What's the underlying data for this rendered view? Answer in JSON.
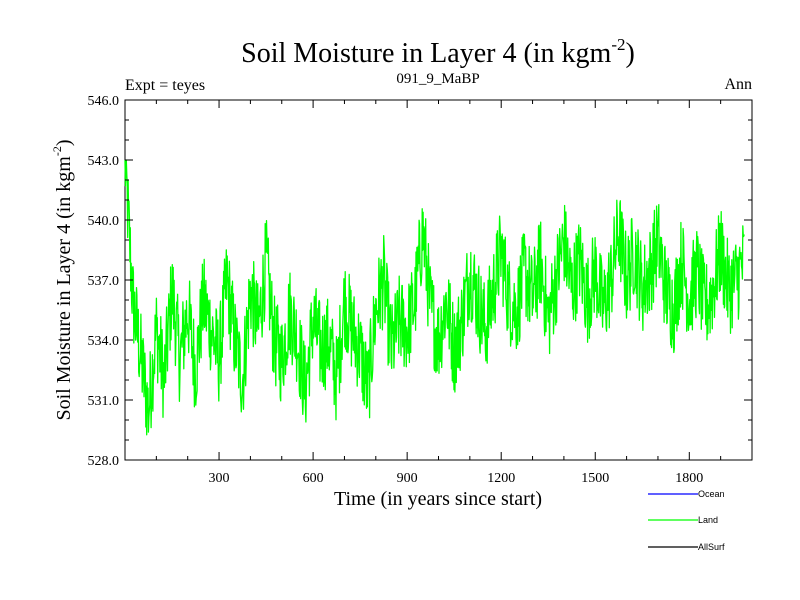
{
  "chart_data": {
    "type": "line",
    "title_main": "Soil Moisture in Layer 4 (in kgm",
    "title_sup": "-2",
    "title_end": ")",
    "subtitle_left": "Expt = teyes",
    "subtitle_center": "091_9_MaBP",
    "subtitle_right": "Ann",
    "xlabel": "Time (in years since start)",
    "ylabel_main": "Soil Moisture in Layer 4 (in kgm",
    "ylabel_sup": "-2",
    "ylabel_end": ")",
    "xlim": [
      0,
      2000
    ],
    "ylim": [
      528.0,
      546.0
    ],
    "x_ticks": [
      300,
      600,
      900,
      1200,
      1500,
      1800
    ],
    "x_tick_labels": [
      "300",
      "600",
      "900",
      "1200",
      "1500",
      "1800"
    ],
    "y_ticks": [
      528.0,
      531.0,
      534.0,
      537.0,
      540.0,
      543.0,
      546.0
    ],
    "y_tick_labels": [
      "528.0",
      "531.0",
      "534.0",
      "537.0",
      "540.0",
      "543.0",
      "546.0"
    ],
    "legend": [
      {
        "name": "Ocean",
        "color": "#0000ff"
      },
      {
        "name": "Land",
        "color": "#00ff00"
      },
      {
        "name": "AllSurf",
        "color": "#000000"
      }
    ],
    "series": [
      {
        "name": "Land",
        "color": "#00ff00",
        "x_start": 0,
        "x_step": 25,
        "values": [
          543.0,
          536.0,
          533.2,
          530.5,
          534.5,
          532.0,
          536.5,
          533.0,
          535.5,
          532.5,
          536.0,
          534.5,
          533.0,
          537.0,
          534.0,
          532.0,
          536.5,
          534.5,
          538.0,
          534.0,
          533.0,
          535.5,
          534.0,
          531.5,
          535.0,
          533.5,
          534.0,
          532.0,
          536.0,
          534.5,
          533.5,
          531.5,
          535.5,
          537.0,
          533.5,
          535.0,
          534.5,
          536.0,
          539.5,
          535.5,
          534.0,
          536.0,
          533.5,
          535.0,
          537.5,
          536.0,
          534.5,
          536.5,
          538.5,
          536.0,
          535.5,
          537.5,
          536.0,
          538.0,
          535.0,
          537.0,
          539.0,
          536.5,
          538.0,
          536.0,
          537.5,
          535.5,
          537.0,
          539.5,
          537.0,
          538.5,
          536.5,
          537.5,
          539.0,
          536.5,
          535.5,
          538.0,
          536.0,
          537.5,
          535.5,
          536.5,
          538.5,
          536.5,
          537.0,
          538.0
        ]
      }
    ]
  }
}
